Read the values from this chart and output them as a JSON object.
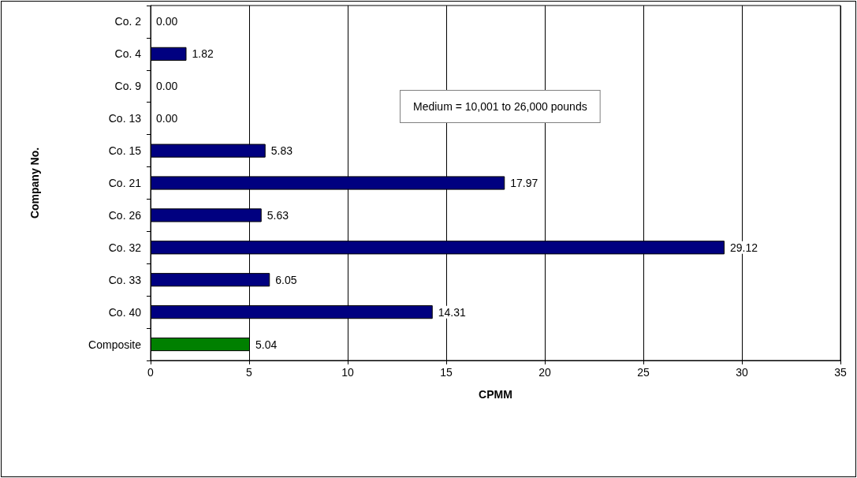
{
  "chart_data": {
    "type": "bar",
    "orientation": "horizontal",
    "xlabel": "CPMM",
    "ylabel": "Company No.",
    "categories": [
      "Co. 2",
      "Co. 4",
      "Co. 9",
      "Co. 13",
      "Co. 15",
      "Co. 21",
      "Co. 26",
      "Co. 32",
      "Co. 33",
      "Co. 40",
      "Composite"
    ],
    "values": [
      0,
      1.82,
      0,
      0,
      5.83,
      17.97,
      5.63,
      29.12,
      6.05,
      14.31,
      5.04
    ],
    "value_labels": [
      "0.00",
      "1.82",
      "0.00",
      "0.00",
      "5.83",
      "17.97",
      "5.63",
      "29.12",
      "6.05",
      "14.31",
      "5.04"
    ],
    "colors": [
      "#000080",
      "#000080",
      "#000080",
      "#000080",
      "#000080",
      "#000080",
      "#000080",
      "#000080",
      "#000080",
      "#000080",
      "#008000"
    ],
    "xlim": [
      0,
      35
    ],
    "xticks": [
      0,
      5,
      10,
      15,
      20,
      25,
      30,
      35
    ],
    "grid": "x",
    "annotations": [
      "Medium = 10,001 to 26,000 pounds"
    ]
  }
}
